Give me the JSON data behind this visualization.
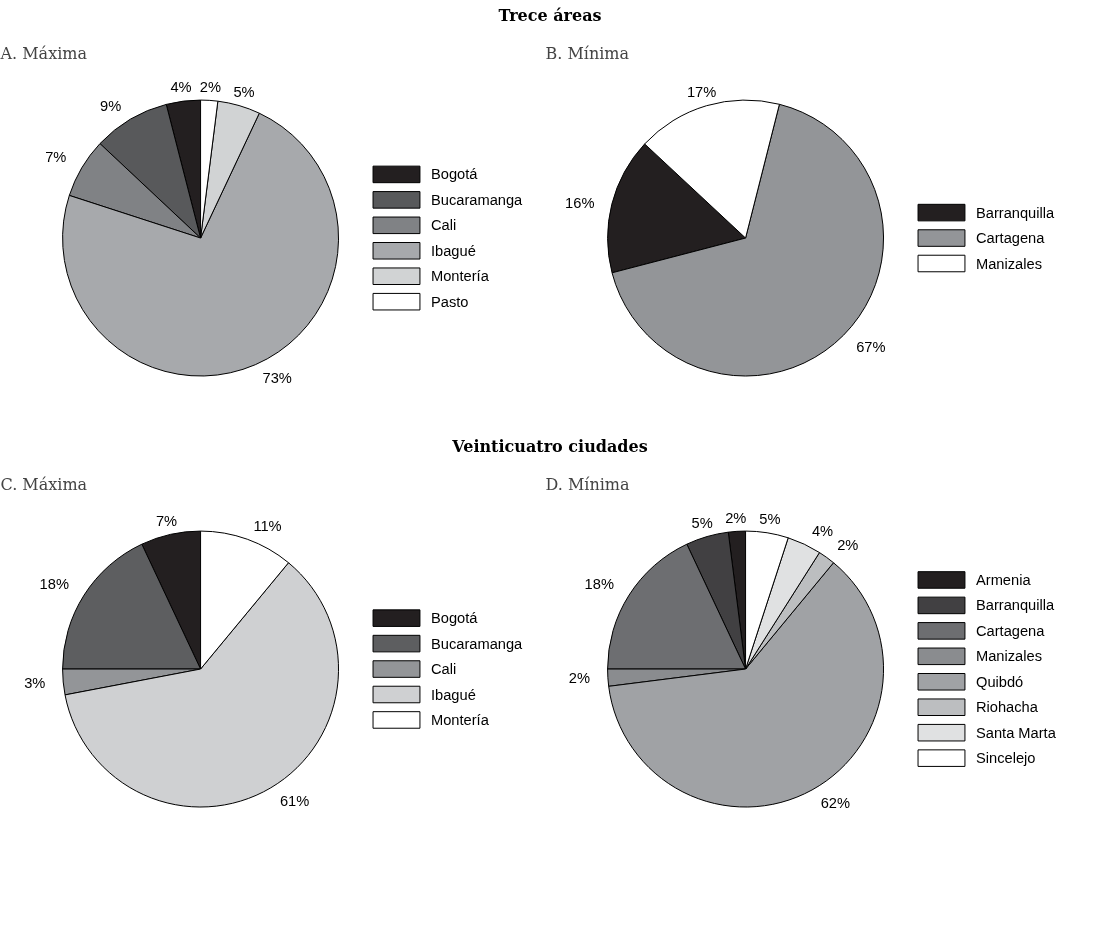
{
  "chart_data": [
    {
      "type": "pie",
      "title": "A. Máxima",
      "annotations": [
        "Trece áreas"
      ],
      "legend": "right",
      "categories": [
        "Bogotá",
        "Bucaramanga",
        "Cali",
        "Ibagué",
        "Montería",
        "Pasto"
      ],
      "values": [
        4,
        9,
        7,
        73,
        5,
        2
      ],
      "value_labels": [
        "4%",
        "9%",
        "7%",
        "73%",
        "5%",
        "2%"
      ],
      "colors": [
        "#231f20",
        "#58595b",
        "#808285",
        "#a7a9ac",
        "#d1d3d4",
        "#ffffff"
      ]
    },
    {
      "type": "pie",
      "title": "B. Mínima",
      "legend": "right",
      "categories": [
        "Barranquilla",
        "Cartagena",
        "Manizales"
      ],
      "values": [
        16,
        67,
        17
      ],
      "value_labels": [
        "16%",
        "67%",
        "17%"
      ],
      "colors": [
        "#231f20",
        "#939598",
        "#ffffff"
      ]
    },
    {
      "type": "pie",
      "title": "C. Máxima",
      "annotations": [
        "Veinticuatro ciudades"
      ],
      "legend": "right",
      "categories": [
        "Bogotá",
        "Bucaramanga",
        "Cali",
        "Ibagué",
        "Montería"
      ],
      "values": [
        7,
        18,
        3,
        61,
        11
      ],
      "value_labels": [
        "7%",
        "18%",
        "3%",
        "61%",
        "11%"
      ],
      "colors": [
        "#231f20",
        "#5d5e60",
        "#939598",
        "#cfd0d2",
        "#ffffff"
      ]
    },
    {
      "type": "pie",
      "title": "D. Mínima",
      "legend": "right",
      "categories": [
        "Armenia",
        "Barranquilla",
        "Cartagena",
        "Manizales",
        "Quibdó",
        "Riohacha",
        "Santa Marta",
        "Sincelejo"
      ],
      "values": [
        2,
        5,
        18,
        2,
        62,
        2,
        4,
        5
      ],
      "value_labels": [
        "2%",
        "5%",
        "18%",
        "2%",
        "62%",
        "2%",
        "4%",
        "5%"
      ],
      "colors": [
        "#231f20",
        "#414042",
        "#6d6e71",
        "#8a8c8f",
        "#a0a2a5",
        "#bcbec0",
        "#e0e1e2",
        "#ffffff"
      ]
    }
  ]
}
